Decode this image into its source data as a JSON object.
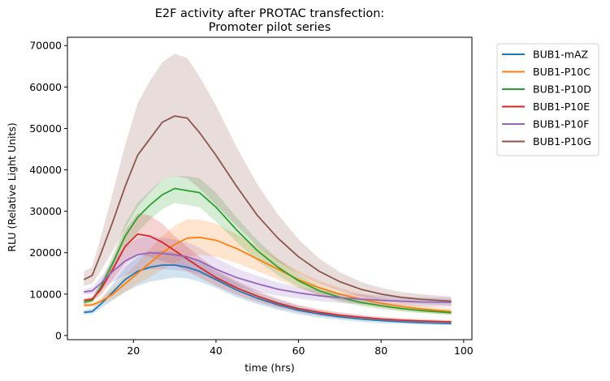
{
  "chart_data": {
    "type": "line",
    "title_line1": "E2F activity after PROTAC transfection:",
    "title_line2": "Promoter pilot series",
    "xlabel": "time (hrs)",
    "ylabel": "RLU (Relative Light Units)",
    "xlim": [
      4,
      102
    ],
    "ylim": [
      -1000,
      72000
    ],
    "xticks": [
      20,
      40,
      60,
      80,
      100
    ],
    "yticks": [
      0,
      10000,
      20000,
      30000,
      40000,
      50000,
      60000,
      70000
    ],
    "legend_position": "outside-top-right",
    "grid": false,
    "series": [
      {
        "name": "BUB1-mAZ",
        "color": "#1f77b4",
        "x": [
          8,
          10,
          12,
          15,
          18,
          21,
          24,
          27,
          30,
          33,
          36,
          40,
          45,
          50,
          55,
          60,
          65,
          70,
          75,
          80,
          85,
          90,
          97
        ],
        "y": [
          5600,
          5800,
          7500,
          10500,
          13500,
          15500,
          16500,
          17000,
          17000,
          16500,
          15500,
          13500,
          11000,
          9000,
          7400,
          6100,
          5200,
          4500,
          4000,
          3600,
          3300,
          3100,
          2900
        ],
        "lo": [
          5000,
          5200,
          6500,
          8500,
          10500,
          12000,
          13000,
          13500,
          14000,
          13800,
          13000,
          11500,
          9200,
          7600,
          6200,
          5100,
          4300,
          3800,
          3300,
          3000,
          2800,
          2600,
          2500
        ],
        "hi": [
          6200,
          6500,
          8500,
          12500,
          16500,
          19000,
          20000,
          20500,
          20000,
          19200,
          18000,
          15500,
          12800,
          10400,
          8600,
          7100,
          6100,
          5200,
          4700,
          4200,
          3800,
          3600,
          3300
        ]
      },
      {
        "name": "BUB1-P10C",
        "color": "#ff7f0e",
        "x": [
          8,
          10,
          12,
          15,
          18,
          21,
          24,
          27,
          30,
          33,
          36,
          40,
          45,
          50,
          55,
          60,
          65,
          70,
          75,
          80,
          85,
          90,
          97
        ],
        "y": [
          7300,
          7400,
          8200,
          10000,
          12500,
          15000,
          17500,
          20000,
          22000,
          23500,
          23700,
          23000,
          21000,
          18500,
          16000,
          13500,
          11500,
          10000,
          8800,
          7800,
          7000,
          6400,
          5800
        ],
        "lo": [
          6800,
          6900,
          7500,
          8800,
          10500,
          12500,
          14000,
          16000,
          17500,
          19000,
          19500,
          19000,
          17500,
          15500,
          13500,
          11500,
          9800,
          8500,
          7500,
          6700,
          6000,
          5500,
          5000
        ],
        "hi": [
          7800,
          7900,
          9000,
          11500,
          14500,
          17500,
          21000,
          24000,
          26500,
          28000,
          28000,
          27000,
          24500,
          21500,
          18500,
          15500,
          13200,
          11500,
          10100,
          9000,
          8000,
          7300,
          6600
        ]
      },
      {
        "name": "BUB1-P10D",
        "color": "#2ca02c",
        "x": [
          8,
          10,
          12,
          15,
          18,
          21,
          24,
          27,
          30,
          33,
          36,
          40,
          45,
          50,
          55,
          60,
          65,
          70,
          75,
          80,
          85,
          90,
          97
        ],
        "y": [
          8000,
          8500,
          11500,
          17500,
          24000,
          28500,
          31500,
          34000,
          35500,
          35000,
          34500,
          31000,
          25500,
          20500,
          16500,
          13200,
          10800,
          9200,
          8000,
          7200,
          6500,
          6000,
          5500
        ],
        "lo": [
          7500,
          8000,
          10500,
          15500,
          21000,
          25000,
          28000,
          30500,
          32000,
          31500,
          31000,
          27500,
          22500,
          18000,
          14500,
          11700,
          9600,
          8200,
          7100,
          6400,
          5800,
          5400,
          5000
        ],
        "hi": [
          8500,
          9000,
          12500,
          19500,
          27000,
          32000,
          35000,
          37500,
          38500,
          38500,
          38000,
          34500,
          28500,
          23000,
          18500,
          14700,
          12000,
          10200,
          8900,
          8000,
          7200,
          6600,
          6000
        ]
      },
      {
        "name": "BUB1-P10E",
        "color": "#d62728",
        "x": [
          8,
          10,
          12,
          15,
          18,
          21,
          24,
          27,
          30,
          33,
          36,
          40,
          45,
          50,
          55,
          60,
          65,
          70,
          75,
          80,
          85,
          90,
          97
        ],
        "y": [
          8500,
          8800,
          11000,
          16000,
          21500,
          24500,
          24000,
          22500,
          20500,
          18500,
          16500,
          14000,
          11500,
          9500,
          7800,
          6500,
          5600,
          4900,
          4400,
          4000,
          3700,
          3500,
          3300
        ],
        "lo": [
          8000,
          8200,
          9500,
          13500,
          17500,
          19500,
          19000,
          18000,
          17000,
          15500,
          14000,
          12000,
          9800,
          8100,
          6700,
          5600,
          4800,
          4200,
          3800,
          3500,
          3200,
          3000,
          2900
        ],
        "hi": [
          9000,
          9400,
          12500,
          18500,
          25500,
          29500,
          29000,
          27000,
          24000,
          21500,
          19000,
          16000,
          13200,
          10900,
          8900,
          7400,
          6400,
          5600,
          5000,
          4500,
          4200,
          4000,
          3700
        ]
      },
      {
        "name": "BUB1-P10F",
        "color": "#9467bd",
        "x": [
          8,
          10,
          12,
          15,
          18,
          21,
          24,
          27,
          30,
          33,
          36,
          40,
          45,
          50,
          55,
          60,
          65,
          70,
          75,
          80,
          85,
          90,
          97
        ],
        "y": [
          10500,
          10800,
          12500,
          15500,
          18000,
          19500,
          20000,
          19800,
          19500,
          19000,
          18000,
          16000,
          14000,
          12500,
          11200,
          10300,
          9600,
          9100,
          8800,
          8500,
          8300,
          8100,
          8000
        ],
        "lo": [
          9800,
          10000,
          11000,
          13000,
          14500,
          15500,
          16000,
          16000,
          15800,
          15500,
          14800,
          13300,
          11800,
          10600,
          9600,
          8900,
          8300,
          7900,
          7600,
          7400,
          7200,
          7000,
          6900
        ],
        "hi": [
          11200,
          11600,
          14000,
          18000,
          21500,
          23500,
          24000,
          23600,
          23200,
          22500,
          21200,
          18700,
          16200,
          14400,
          12800,
          11700,
          10900,
          10300,
          10000,
          9600,
          9400,
          9200,
          9100
        ]
      },
      {
        "name": "BUB1-P10G",
        "color": "#8c564b",
        "x": [
          8,
          10,
          12,
          15,
          18,
          21,
          24,
          27,
          30,
          33,
          36,
          40,
          45,
          50,
          55,
          60,
          65,
          70,
          75,
          80,
          85,
          90,
          97
        ],
        "y": [
          13500,
          14500,
          19500,
          27500,
          36000,
          43500,
          47500,
          51500,
          53000,
          52500,
          49000,
          43500,
          36000,
          29000,
          23500,
          19000,
          15500,
          13000,
          11200,
          10000,
          9200,
          8700,
          8300
        ],
        "lo": [
          12000,
          12500,
          15500,
          20500,
          26000,
          31000,
          34500,
          37500,
          38500,
          38000,
          35500,
          31500,
          26500,
          21500,
          17800,
          14800,
          12400,
          10700,
          9400,
          8500,
          7900,
          7500,
          7200
        ],
        "hi": [
          15500,
          16500,
          23500,
          34500,
          46000,
          56000,
          61500,
          66000,
          68000,
          67000,
          62500,
          55500,
          45500,
          36500,
          29200,
          23200,
          18600,
          15300,
          13000,
          11500,
          10500,
          9900,
          9400
        ]
      }
    ]
  }
}
